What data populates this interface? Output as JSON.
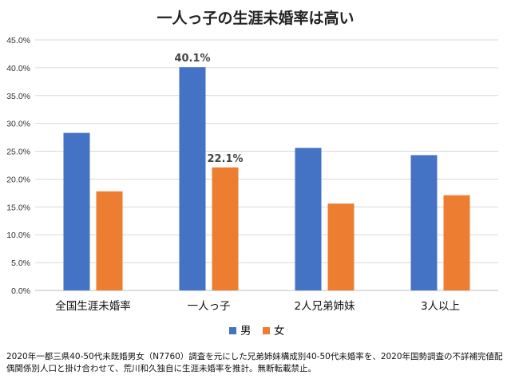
{
  "chart_data": {
    "type": "bar",
    "title": "一人っ子の生涯未婚率は高い",
    "categories": [
      "全国生涯未婚率",
      "一人っ子",
      "2人兄弟姉妹",
      "3人以上"
    ],
    "series": [
      {
        "name": "男",
        "color": "#4472C4",
        "values": [
          28.3,
          40.1,
          25.6,
          24.3
        ]
      },
      {
        "name": "女",
        "color": "#ED7D31",
        "values": [
          17.8,
          22.1,
          15.6,
          17.1
        ]
      }
    ],
    "ylim": [
      0,
      45
    ],
    "yticks": [
      "0.0%",
      "5.0%",
      "10.0%",
      "15.0%",
      "20.0%",
      "25.0%",
      "30.0%",
      "35.0%",
      "40.0%",
      "45.0%"
    ],
    "data_labels": [
      {
        "series": 0,
        "category": 1,
        "text": "40.1%"
      },
      {
        "series": 1,
        "category": 1,
        "text": "22.1%"
      }
    ],
    "grid": true,
    "legend": "bottom"
  },
  "footnote": "2020年一都三県40-50代未既婚男女（N7760）調査を元にした兄弟姉妹構成別40-50代未婚率を、2020年国勢調査の不詳補完値配偶関係別人口と掛け合わせて、荒川和久独自に生涯未婚率を推計。無断転載禁止。"
}
